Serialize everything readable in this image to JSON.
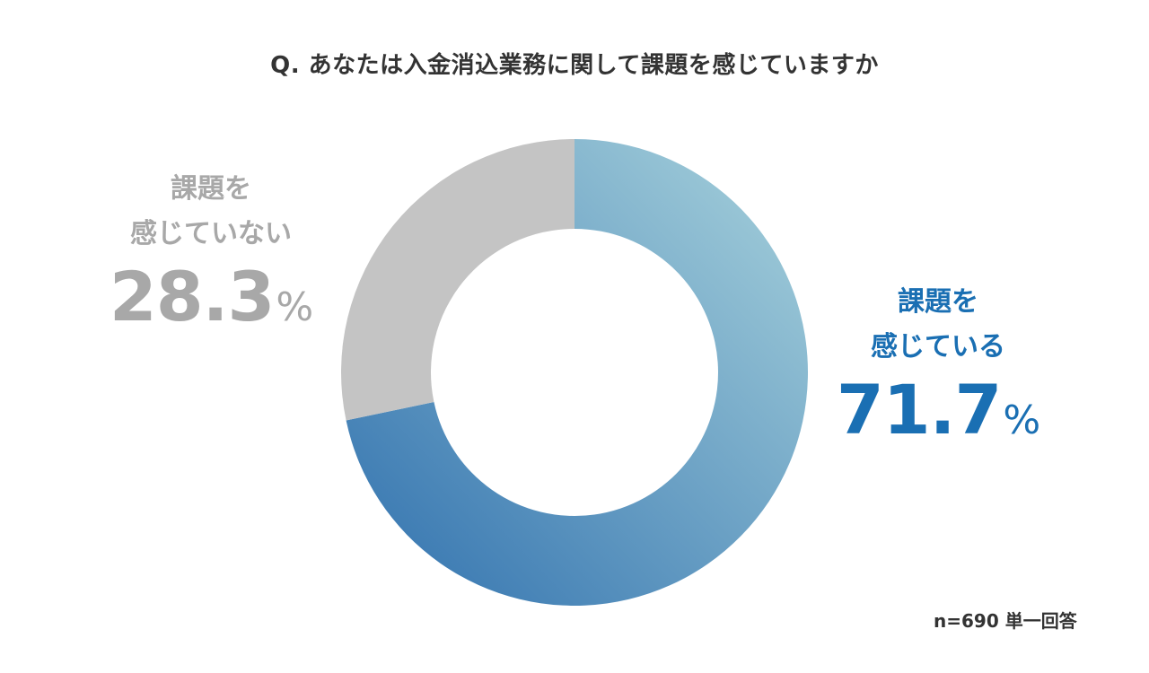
{
  "chart_data": {
    "type": "pie",
    "title": "Q. あなたは入金消込業務に関して課題を感じていますか",
    "slices": [
      {
        "label_line1": "課題を",
        "label_line2": "感じている",
        "value": 71.7,
        "value_text": "71.7",
        "unit": "%",
        "color": "#1a6fb3"
      },
      {
        "label_line1": "課題を",
        "label_line2": "感じていない",
        "value": 28.3,
        "value_text": "28.3",
        "unit": "%",
        "color": "#c4c4c4"
      }
    ],
    "note": "n=690 単一回答"
  },
  "colors": {
    "gradient_start": "#a9d3dc",
    "gradient_end": "#2f70ae",
    "gray_slice": "#c4c4c4",
    "gray_text": "#a8a8a8",
    "blue_text": "#1a6fb3"
  }
}
